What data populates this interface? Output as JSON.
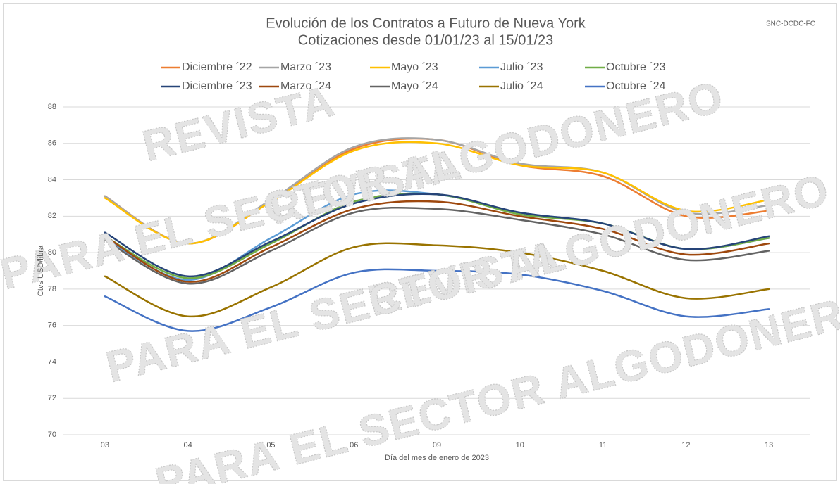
{
  "chart_data": {
    "type": "line",
    "title": "Evolución de los Contratos a Futuro de Nueva York",
    "subtitle": "Cotizaciones desde 01/01/23 al 15/01/23",
    "source": "SNC-DCDC-FC",
    "watermark": [
      "REVISTA",
      "PARA EL SECTOR ALGODONERO"
    ],
    "x_label": "Día del mes de enero de 2023",
    "y_label": "Ctvs USD/libra",
    "categories": [
      "03",
      "04",
      "05",
      "06",
      "09",
      "10",
      "11",
      "12",
      "13"
    ],
    "ylim": [
      70,
      88
    ],
    "yticks": [
      70,
      72,
      74,
      76,
      78,
      80,
      82,
      84,
      86,
      88
    ],
    "grid": true,
    "smooth": true,
    "series": [
      {
        "name": "Diciembre ´22",
        "color": "#ed7d31",
        "values": [
          83.1,
          80.5,
          82.8,
          85.7,
          86.2,
          84.8,
          84.2,
          82.0,
          82.3
        ]
      },
      {
        "name": "Marzo ´23",
        "color": "#a5a5a5",
        "values": [
          83.1,
          80.5,
          82.9,
          85.8,
          86.2,
          84.9,
          84.4,
          82.2,
          82.6
        ]
      },
      {
        "name": "Mayo ´23",
        "color": "#ffc000",
        "values": [
          83.0,
          80.5,
          82.8,
          85.6,
          86.0,
          84.8,
          84.4,
          82.3,
          82.9
        ]
      },
      {
        "name": "Julio ´23",
        "color": "#5b9bd5",
        "values": [
          80.8,
          78.5,
          80.8,
          83.2,
          83.2,
          82.2,
          81.6,
          80.2,
          80.8
        ]
      },
      {
        "name": "Octubre ´23",
        "color": "#70ad47",
        "values": [
          80.9,
          78.6,
          80.5,
          82.8,
          83.2,
          82.1,
          81.6,
          80.2,
          80.8
        ]
      },
      {
        "name": "Diciembre ´23",
        "color": "#264478",
        "values": [
          81.1,
          78.7,
          80.6,
          82.7,
          83.2,
          82.2,
          81.6,
          80.2,
          80.9
        ]
      },
      {
        "name": "Marzo ´24",
        "color": "#9e480e",
        "values": [
          80.9,
          78.4,
          80.3,
          82.4,
          82.8,
          82.0,
          81.3,
          79.9,
          80.5
        ]
      },
      {
        "name": "Mayo ´24",
        "color": "#636363",
        "values": [
          80.7,
          78.3,
          80.1,
          82.2,
          82.4,
          81.8,
          81.0,
          79.6,
          80.1
        ]
      },
      {
        "name": "Julio ´24",
        "color": "#997300",
        "values": [
          78.7,
          76.5,
          78.1,
          80.3,
          80.4,
          80.0,
          79.0,
          77.5,
          78.0
        ]
      },
      {
        "name": "Octubre ´24",
        "color": "#4472c4",
        "values": [
          77.6,
          75.7,
          77.0,
          78.9,
          79.0,
          78.8,
          77.9,
          76.5,
          76.9
        ]
      }
    ]
  }
}
